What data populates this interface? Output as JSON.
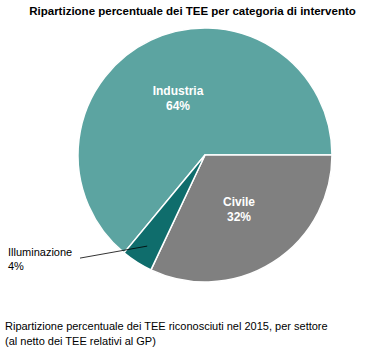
{
  "chart_data": {
    "type": "pie",
    "title": "Ripartizione percentuale dei TEE per categoria di intervento",
    "subtitle": [
      "Ripartizione percentuale dei TEE riconosciuti nel 2015, per settore",
      "(al netto dei TEE relativi al GP)"
    ],
    "categories": [
      "Industria",
      "Civile",
      "Illuminazione"
    ],
    "values": [
      64,
      32,
      4
    ],
    "value_labels": [
      "64%",
      "32%",
      "4%"
    ],
    "colors": [
      "#5ca4a1",
      "#808080",
      "#0f6d6c"
    ],
    "data_labels": true
  }
}
